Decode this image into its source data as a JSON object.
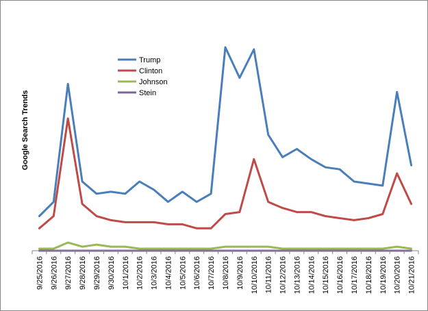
{
  "chart_data": {
    "type": "line",
    "title": "",
    "xlabel": "",
    "ylabel": "Google Search Trends",
    "ylim": [
      0,
      100
    ],
    "grid": false,
    "legend_position": "upper-left-inside",
    "categories": [
      "9/25/2016",
      "9/26/2016",
      "9/27/2016",
      "9/28/2016",
      "9/29/2016",
      "9/30/2016",
      "10/1/2016",
      "10/2/2016",
      "10/3/2016",
      "10/4/2016",
      "10/5/2016",
      "10/6/2016",
      "10/7/2016",
      "10/8/2016",
      "10/9/2016",
      "10/10/2016",
      "10/11/2016",
      "10/12/2016",
      "10/13/2016",
      "10/14/2016",
      "10/15/2016",
      "10/16/2016",
      "10/17/2016",
      "10/18/2016",
      "10/19/2016",
      "10/20/2016",
      "10/21/2016"
    ],
    "series": [
      {
        "name": "Trump",
        "color": "#4a7ebb",
        "values": [
          17,
          24,
          82,
          34,
          28,
          29,
          28,
          34,
          30,
          24,
          29,
          24,
          28,
          100,
          85,
          99,
          57,
          46,
          50,
          45,
          41,
          40,
          34,
          33,
          32,
          78,
          42
        ]
      },
      {
        "name": "Clinton",
        "color": "#be4b48",
        "values": [
          11,
          17,
          65,
          23,
          17,
          15,
          14,
          14,
          14,
          13,
          13,
          11,
          11,
          18,
          19,
          45,
          24,
          21,
          19,
          19,
          17,
          16,
          15,
          16,
          18,
          38,
          23
        ]
      },
      {
        "name": "Johnson",
        "color": "#98b954",
        "values": [
          1,
          1,
          4,
          2,
          3,
          2,
          2,
          1,
          1,
          1,
          1,
          1,
          1,
          2,
          2,
          2,
          2,
          1,
          1,
          1,
          1,
          1,
          1,
          1,
          1,
          2,
          1
        ]
      },
      {
        "name": "Stein",
        "color": "#7d60a0",
        "values": [
          0,
          0,
          0,
          0,
          0,
          0,
          0,
          0,
          0,
          0,
          0,
          0,
          0,
          0,
          0,
          0,
          0,
          0,
          0,
          0,
          0,
          0,
          0,
          0,
          0,
          0,
          0
        ]
      }
    ]
  }
}
